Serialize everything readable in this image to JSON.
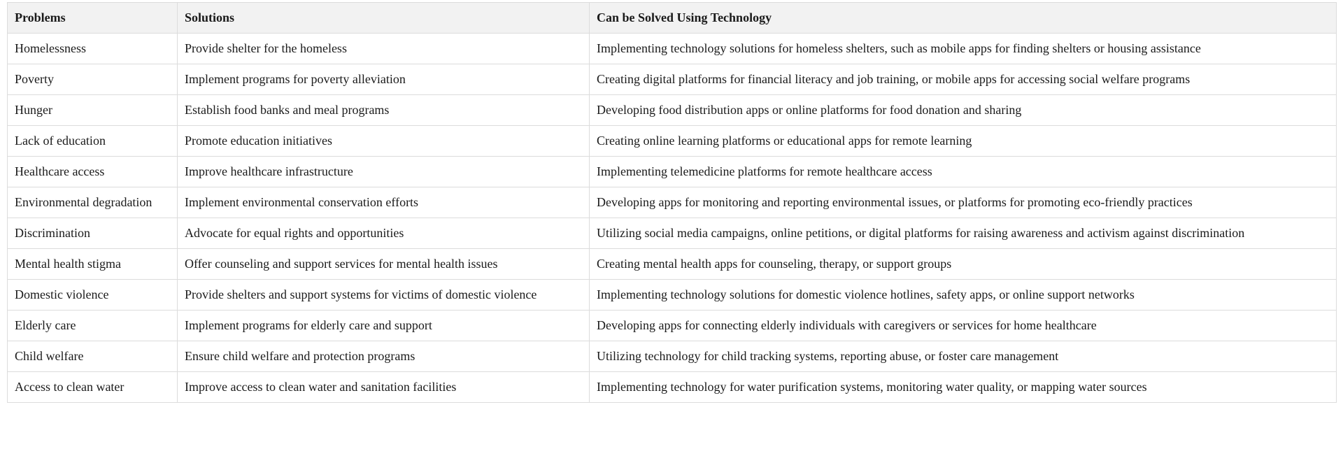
{
  "table": {
    "headers": [
      "Problems",
      "Solutions",
      "Can be Solved Using Technology"
    ],
    "rows": [
      [
        "Homelessness",
        "Provide shelter for the homeless",
        "Implementing technology solutions for homeless shelters, such as mobile apps for finding shelters or housing assistance"
      ],
      [
        "Poverty",
        "Implement programs for poverty alleviation",
        "Creating digital platforms for financial literacy and job training, or mobile apps for accessing social welfare programs"
      ],
      [
        "Hunger",
        "Establish food banks and meal programs",
        "Developing food distribution apps or online platforms for food donation and sharing"
      ],
      [
        "Lack of education",
        "Promote education initiatives",
        "Creating online learning platforms or educational apps for remote learning"
      ],
      [
        "Healthcare access",
        "Improve healthcare infrastructure",
        "Implementing telemedicine platforms for remote healthcare access"
      ],
      [
        "Environmental degradation",
        "Implement environmental conservation efforts",
        "Developing apps for monitoring and reporting environmental issues, or platforms for promoting eco-friendly practices"
      ],
      [
        "Discrimination",
        "Advocate for equal rights and opportunities",
        "Utilizing social media campaigns, online petitions, or digital platforms for raising awareness and activism against discrimination"
      ],
      [
        "Mental health stigma",
        "Offer counseling and support services for mental health issues",
        "Creating mental health apps for counseling, therapy, or support groups"
      ],
      [
        "Domestic violence",
        "Provide shelters and support systems for victims of domestic violence",
        "Implementing technology solutions for domestic violence hotlines, safety apps, or online support networks"
      ],
      [
        "Elderly care",
        "Implement programs for elderly care and support",
        "Developing apps for connecting elderly individuals with caregivers or services for home healthcare"
      ],
      [
        "Child welfare",
        "Ensure child welfare and protection programs",
        "Utilizing technology for child tracking systems, reporting abuse, or foster care management"
      ],
      [
        "Access to clean water",
        "Improve access to clean water and sanitation facilities",
        "Implementing technology for water purification systems, monitoring water quality, or mapping water sources"
      ]
    ]
  }
}
